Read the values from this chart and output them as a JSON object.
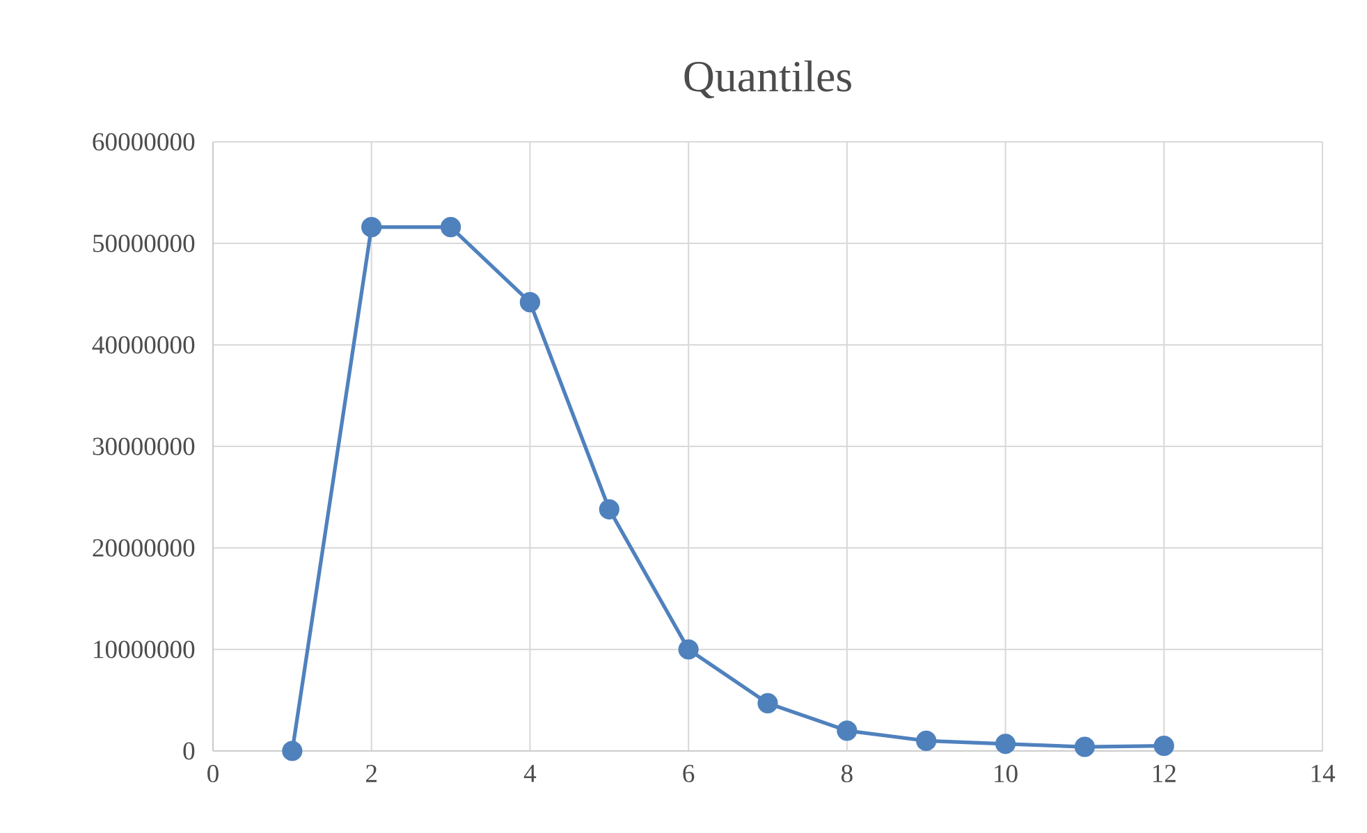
{
  "chart_data": {
    "type": "line",
    "title": "Quantiles",
    "x": [
      1,
      2,
      3,
      4,
      5,
      6,
      7,
      8,
      9,
      10,
      11,
      12
    ],
    "series": [
      {
        "color": "#4f81bd",
        "values": [
          0,
          51600000,
          51600000,
          44200000,
          23800000,
          10000000,
          4700000,
          2000000,
          1000000,
          700000,
          400000,
          500000
        ]
      }
    ],
    "xlim": [
      0,
      14
    ],
    "xticks": [
      0,
      2,
      4,
      6,
      8,
      10,
      12,
      14
    ],
    "ylim": [
      0,
      60000000
    ],
    "yticks": [
      0,
      10000000,
      20000000,
      30000000,
      40000000,
      50000000,
      60000000
    ],
    "grid": true,
    "marker": "circle",
    "line_style": "solid"
  }
}
